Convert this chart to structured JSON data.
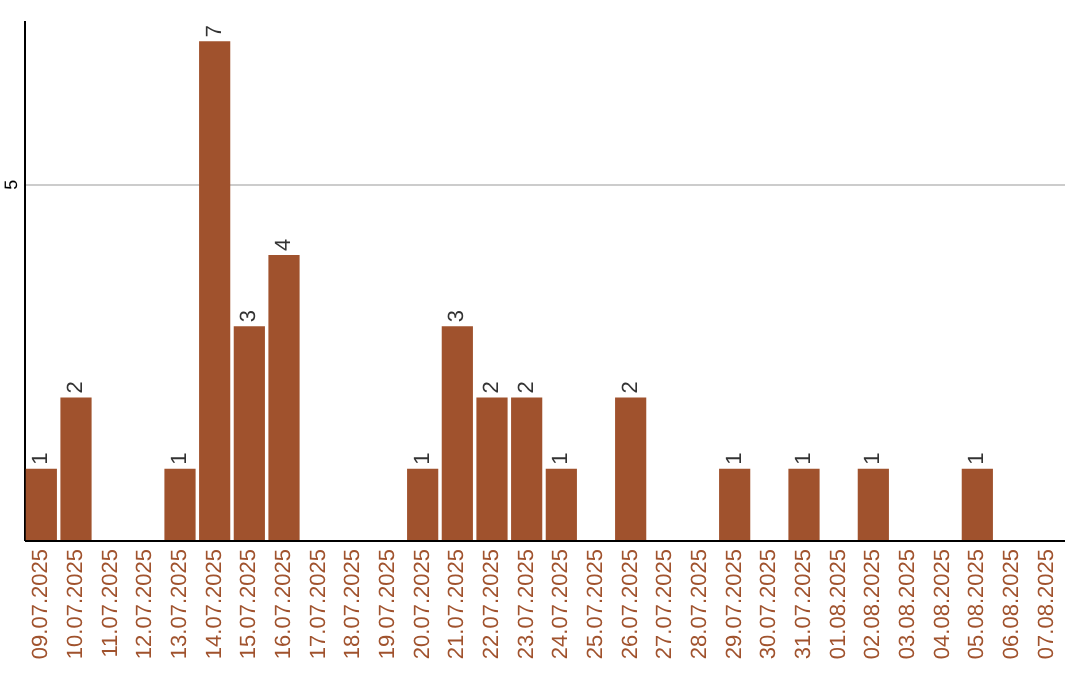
{
  "chart_data": {
    "type": "bar",
    "categories": [
      "09.07.2025",
      "10.07.2025",
      "11.07.2025",
      "12.07.2025",
      "13.07.2025",
      "14.07.2025",
      "15.07.2025",
      "16.07.2025",
      "17.07.2025",
      "18.07.2025",
      "19.07.2025",
      "20.07.2025",
      "21.07.2025",
      "22.07.2025",
      "23.07.2025",
      "24.07.2025",
      "25.07.2025",
      "26.07.2025",
      "27.07.2025",
      "28.07.2025",
      "29.07.2025",
      "30.07.2025",
      "31.07.2025",
      "01.08.2025",
      "02.08.2025",
      "03.08.2025",
      "04.08.2025",
      "05.08.2025",
      "06.08.2025",
      "07.08.2025"
    ],
    "values": [
      1,
      2,
      0,
      0,
      1,
      7,
      3,
      4,
      0,
      0,
      0,
      1,
      3,
      2,
      2,
      1,
      0,
      2,
      0,
      0,
      1,
      0,
      1,
      0,
      1,
      0,
      0,
      1,
      0,
      0
    ],
    "value_labels": [
      "1",
      "2",
      null,
      null,
      "1",
      "7",
      "3",
      "4",
      null,
      null,
      null,
      "1",
      "3",
      "2",
      "2",
      "1",
      null,
      "2",
      null,
      null,
      "1",
      null,
      "1",
      null,
      "1",
      null,
      null,
      "1",
      null,
      null
    ],
    "color": "#a0522d",
    "ylim": [
      0,
      7.3
    ],
    "yticks": [
      5
    ],
    "grid": "y"
  }
}
